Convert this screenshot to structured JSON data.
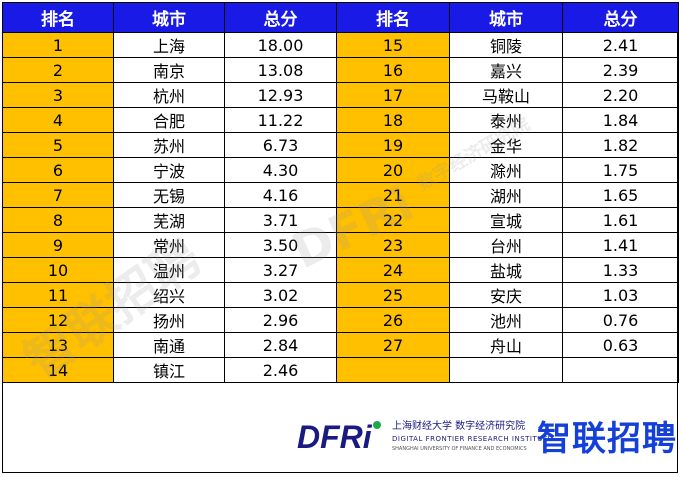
{
  "table": {
    "headers": [
      "排名",
      "城市",
      "总分",
      "排名",
      "城市",
      "总分"
    ],
    "left": [
      {
        "rank": "1",
        "city": "上海",
        "score": "18.00"
      },
      {
        "rank": "2",
        "city": "南京",
        "score": "13.08"
      },
      {
        "rank": "3",
        "city": "杭州",
        "score": "12.93"
      },
      {
        "rank": "4",
        "city": "合肥",
        "score": "11.22"
      },
      {
        "rank": "5",
        "city": "苏州",
        "score": "6.73"
      },
      {
        "rank": "6",
        "city": "宁波",
        "score": "4.30"
      },
      {
        "rank": "7",
        "city": "无锡",
        "score": "4.16"
      },
      {
        "rank": "8",
        "city": "芜湖",
        "score": "3.71"
      },
      {
        "rank": "9",
        "city": "常州",
        "score": "3.50"
      },
      {
        "rank": "10",
        "city": "温州",
        "score": "3.27"
      },
      {
        "rank": "11",
        "city": "绍兴",
        "score": "3.02"
      },
      {
        "rank": "12",
        "city": "扬州",
        "score": "2.96"
      },
      {
        "rank": "13",
        "city": "南通",
        "score": "2.84"
      },
      {
        "rank": "14",
        "city": "镇江",
        "score": "2.46"
      }
    ],
    "right": [
      {
        "rank": "15",
        "city": "铜陵",
        "score": "2.41"
      },
      {
        "rank": "16",
        "city": "嘉兴",
        "score": "2.39"
      },
      {
        "rank": "17",
        "city": "马鞍山",
        "score": "2.20"
      },
      {
        "rank": "18",
        "city": "泰州",
        "score": "1.84"
      },
      {
        "rank": "19",
        "city": "金华",
        "score": "1.82"
      },
      {
        "rank": "20",
        "city": "滁州",
        "score": "1.75"
      },
      {
        "rank": "21",
        "city": "湖州",
        "score": "1.65"
      },
      {
        "rank": "22",
        "city": "宣城",
        "score": "1.61"
      },
      {
        "rank": "23",
        "city": "台州",
        "score": "1.41"
      },
      {
        "rank": "24",
        "city": "盐城",
        "score": "1.33"
      },
      {
        "rank": "25",
        "city": "安庆",
        "score": "1.03"
      },
      {
        "rank": "26",
        "city": "池州",
        "score": "0.76"
      },
      {
        "rank": "27",
        "city": "舟山",
        "score": "0.63"
      }
    ]
  },
  "footer": {
    "dfri_logo": "DFRi",
    "institute_cn": "上海财经大学 数字经济研究院",
    "institute_en": "DIGITAL FRONTIER RESEARCH INSTITUTE",
    "institute_sub": "SHANGHAI UNIVERSITY OF FINANCE AND ECONOMICS",
    "zhilian_logo": "智联招聘"
  },
  "watermarks": [
    "智联招聘",
    "DFRi",
    "数字经济研究院"
  ],
  "colors": {
    "header_bg": "#1a1ae6",
    "rank_bg": "#ffc000",
    "logo_blue": "#1440d8"
  }
}
